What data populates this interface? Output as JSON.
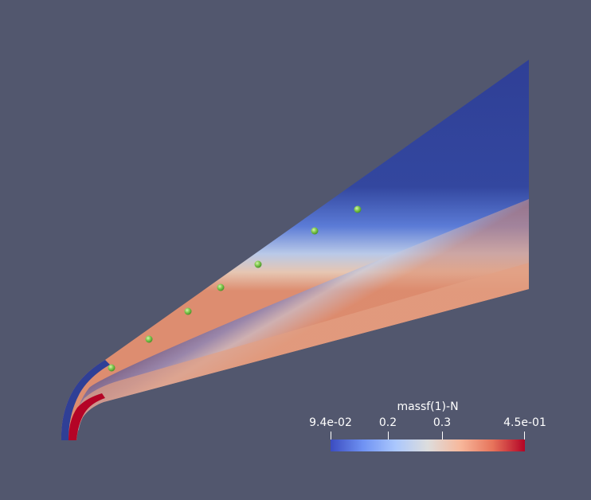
{
  "scene": {
    "background_color": "#52576e",
    "field_colors": [
      "#3b4cc0",
      "#6f92f3",
      "#aac7fd",
      "#dddddd",
      "#f7b89c",
      "#e7745b",
      "#b40426"
    ],
    "probe_color": "#7cc84a",
    "probe_count": 7
  },
  "colorbar": {
    "title": "massf(1)-N",
    "labels": [
      "9.4e-02",
      "0.2",
      "0.3",
      "4.5e-01"
    ]
  }
}
